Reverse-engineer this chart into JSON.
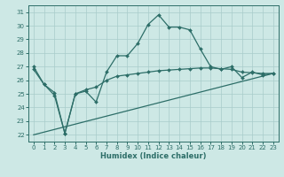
{
  "xlabel": "Humidex (Indice chaleur)",
  "bg_color": "#cde8e5",
  "grid_color": "#a8ccca",
  "line_color": "#2d6e68",
  "xlim": [
    -0.5,
    23.5
  ],
  "ylim": [
    21.5,
    31.5
  ],
  "yticks": [
    22,
    23,
    24,
    25,
    26,
    27,
    28,
    29,
    30,
    31
  ],
  "xticks": [
    0,
    1,
    2,
    3,
    4,
    5,
    6,
    7,
    8,
    9,
    10,
    11,
    12,
    13,
    14,
    15,
    16,
    17,
    18,
    19,
    20,
    21,
    22,
    23
  ],
  "series1_x": [
    0,
    1,
    2,
    3,
    4,
    5,
    6,
    7,
    8,
    9,
    10,
    11,
    12,
    13,
    14,
    15,
    16,
    17,
    18,
    19,
    20,
    21,
    22,
    23
  ],
  "series1_y": [
    27.0,
    25.7,
    24.9,
    22.1,
    25.0,
    25.2,
    24.4,
    26.6,
    27.8,
    27.8,
    28.7,
    30.1,
    30.8,
    29.9,
    29.9,
    29.7,
    28.3,
    27.0,
    26.8,
    27.0,
    26.2,
    26.6,
    26.4,
    26.5
  ],
  "series2_x": [
    0,
    1,
    2,
    3,
    4,
    5,
    6,
    7,
    8,
    9,
    10,
    11,
    12,
    13,
    14,
    15,
    16,
    17,
    18,
    19,
    20,
    21,
    22,
    23
  ],
  "series2_y": [
    26.8,
    25.7,
    25.1,
    22.1,
    25.0,
    25.3,
    25.5,
    26.0,
    26.3,
    26.4,
    26.5,
    26.6,
    26.7,
    26.75,
    26.8,
    26.85,
    26.9,
    26.9,
    26.85,
    26.8,
    26.6,
    26.55,
    26.5,
    26.5
  ],
  "series3_x": [
    0,
    23
  ],
  "series3_y": [
    22.0,
    26.5
  ]
}
